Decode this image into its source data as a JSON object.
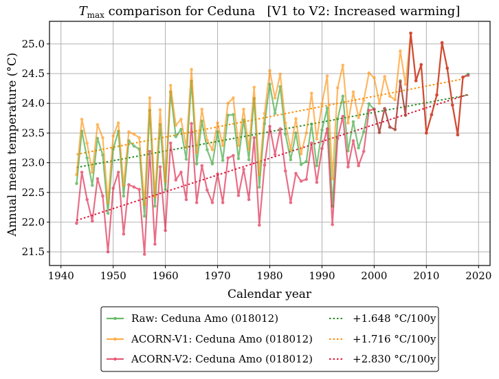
{
  "chart_data": {
    "type": "line",
    "title": "T_max comparison for Ceduna   [V1 to V2: Increased warming]",
    "title_parts": {
      "symbol": "T",
      "subscript": "max",
      "rest": " comparison for Ceduna   [V1 to V2: Increased warming]"
    },
    "xlabel": "Calendar year",
    "ylabel": "Annual mean temperature (°C)",
    "xlim": [
      1937.8,
      2022.2
    ],
    "ylim": [
      21.27,
      25.38
    ],
    "xticks": [
      1940,
      1950,
      1960,
      1970,
      1980,
      1990,
      2000,
      2010,
      2020
    ],
    "yticks": [
      21.5,
      22.0,
      22.5,
      23.0,
      23.5,
      24.0,
      24.5,
      25.0
    ],
    "ytick_labels": [
      "21.5",
      "22.0",
      "22.5",
      "23.0",
      "23.5",
      "24.0",
      "24.5",
      "25.0"
    ],
    "grid": true,
    "legend_placement": "below plot, centered, two columns",
    "series": [
      {
        "name": "Raw: Ceduna Amo (018012)",
        "color": "#2ca02c",
        "start_year": 1943,
        "values": [
          22.65,
          23.53,
          23.08,
          22.62,
          23.41,
          23.13,
          22.15,
          23.23,
          23.53,
          22.44,
          23.37,
          23.28,
          23.23,
          22.1,
          23.88,
          22.27,
          23.64,
          22.55,
          24.19,
          23.44,
          23.56,
          23.06,
          24.37,
          22.98,
          23.7,
          23.22,
          22.98,
          23.52,
          23.04,
          23.8,
          23.81,
          23.07,
          23.72,
          23.05,
          24.08,
          22.59,
          23.66,
          24.32,
          23.83,
          24.28,
          23.48,
          23.05,
          23.5,
          22.97,
          23.02,
          23.65,
          22.95,
          23.55,
          23.92,
          22.27,
          23.74,
          24.12,
          23.2,
          23.69,
          23.25,
          23.52,
          23.99,
          23.9,
          23.51,
          23.91,
          23.6,
          23.56,
          24.38,
          23.8,
          25.18,
          24.38,
          24.65,
          23.5,
          23.81,
          24.14,
          25.02,
          24.59,
          23.97,
          23.47,
          24.44,
          24.49
        ]
      },
      {
        "name": "ACORN-V1: Ceduna Amo (018012)",
        "color": "#ff8c00",
        "start_year": 1943,
        "values": [
          22.8,
          23.73,
          23.33,
          22.84,
          23.64,
          23.42,
          22.33,
          23.45,
          23.67,
          22.62,
          23.52,
          23.48,
          23.42,
          22.3,
          24.09,
          22.43,
          23.89,
          22.69,
          24.3,
          23.63,
          23.73,
          23.26,
          24.57,
          23.18,
          23.9,
          23.38,
          23.22,
          23.67,
          23.29,
          24.0,
          24.09,
          23.29,
          23.9,
          23.23,
          24.27,
          22.8,
          23.83,
          24.55,
          24.09,
          24.49,
          23.67,
          23.22,
          23.74,
          23.15,
          23.5,
          24.17,
          23.4,
          23.99,
          24.46,
          22.73,
          24.26,
          24.64,
          23.67,
          24.19,
          23.76,
          24.05,
          24.51,
          24.43,
          24.0,
          24.45,
          24.12,
          24.06,
          24.88,
          24.32,
          25.18,
          24.38,
          24.65,
          23.5,
          23.81,
          24.14,
          25.02,
          24.59,
          23.97,
          23.47,
          24.44
        ]
      },
      {
        "name": "ACORN-V2: Ceduna Amo (018012)",
        "color": "#dc143c",
        "start_year": 1943,
        "values": [
          21.98,
          22.84,
          22.38,
          22.02,
          22.73,
          22.44,
          21.5,
          22.57,
          22.84,
          21.8,
          22.63,
          22.59,
          22.55,
          21.46,
          23.19,
          21.63,
          22.93,
          21.86,
          23.33,
          22.71,
          22.84,
          22.38,
          23.66,
          22.33,
          22.95,
          22.54,
          22.33,
          22.81,
          22.33,
          23.08,
          23.12,
          22.45,
          22.89,
          22.38,
          23.42,
          21.95,
          22.96,
          23.61,
          23.14,
          23.57,
          22.86,
          22.33,
          22.82,
          22.69,
          22.72,
          23.33,
          22.67,
          23.24,
          23.57,
          21.96,
          23.41,
          23.78,
          22.93,
          23.37,
          22.95,
          23.19,
          23.88,
          23.9,
          23.51,
          23.91,
          23.6,
          23.56,
          24.36,
          23.8,
          25.18,
          24.38,
          24.65,
          23.5,
          23.81,
          24.14,
          25.02,
          24.59,
          23.97,
          23.47,
          24.44,
          24.47
        ]
      }
    ],
    "trends": [
      {
        "label": "+1.648 °C/100y",
        "color": "#228b22",
        "x": [
          1943,
          2018
        ],
        "y": [
          22.92,
          24.14
        ]
      },
      {
        "label": "+1.716 °C/100y",
        "color": "#ff8c00",
        "x": [
          1943,
          2017
        ],
        "y": [
          23.14,
          24.41
        ]
      },
      {
        "label": "+2.830 °C/100y",
        "color": "#dc143c",
        "x": [
          1943,
          2018
        ],
        "y": [
          22.03,
          24.15
        ]
      }
    ]
  }
}
